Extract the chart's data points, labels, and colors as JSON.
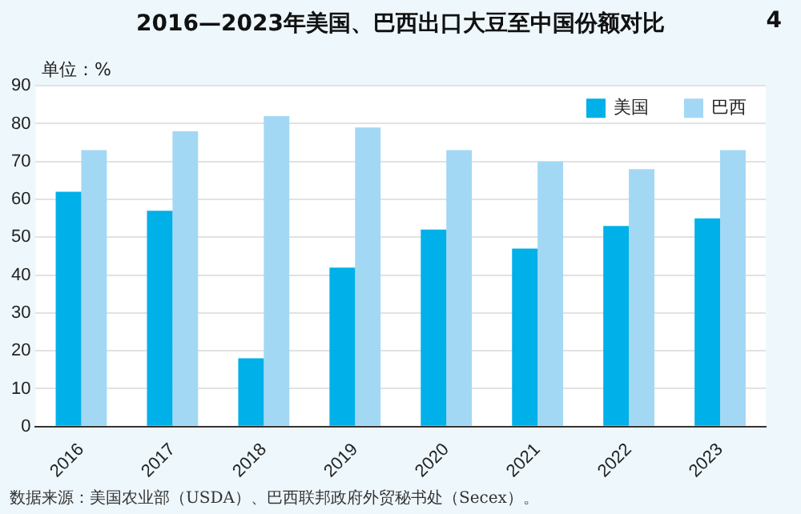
{
  "chart_data": {
    "type": "bar",
    "title": "2016—2023年美国、巴西出口大豆至中国份额对比",
    "ylabel": "单位：%",
    "categories": [
      "2016",
      "2017",
      "2018",
      "2019",
      "2020",
      "2021",
      "2022",
      "2023"
    ],
    "series": [
      {
        "name": "美国",
        "color": "#00b0e8",
        "values": [
          62,
          57,
          18,
          42,
          52,
          47,
          53,
          55
        ]
      },
      {
        "name": "巴西",
        "color": "#a3d8f4",
        "values": [
          73,
          78,
          82,
          79,
          73,
          70,
          68,
          73
        ]
      }
    ],
    "ylim": [
      0,
      90
    ],
    "yticks": [
      0,
      10,
      20,
      30,
      40,
      50,
      60,
      70,
      80,
      90
    ],
    "grid": "y",
    "legend": "top right",
    "annotations": [
      "4",
      "数据来源：美国农业部（USDA）、巴西联邦政府外贸秘书处（Secex）。"
    ]
  }
}
